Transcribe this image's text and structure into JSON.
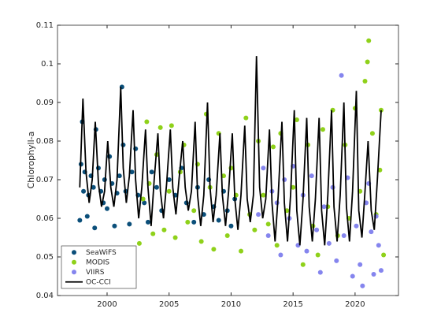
{
  "chart_data": {
    "type": "scatter",
    "ylabel": "Chlorophyll-a",
    "xlim": [
      1996,
      2023.5
    ],
    "xticks": [
      2000,
      2005,
      2010,
      2015,
      2020
    ],
    "ylim": [
      0.04,
      0.11
    ],
    "yticks": [
      0.04,
      0.05,
      0.06,
      0.07,
      0.08,
      0.09,
      0.1,
      0.11
    ],
    "legend": "lower-left",
    "series": [
      {
        "name": "SeaWiFS",
        "color": "#0b4f7a",
        "style": "marker",
        "x": [
          1997.8,
          1997.9,
          1998.0,
          1998.1,
          1998.2,
          1998.4,
          1998.5,
          1998.7,
          1998.9,
          1999.0,
          1999.1,
          1999.3,
          1999.5,
          1999.7,
          1999.8,
          2000.0,
          2000.2,
          2000.4,
          2000.6,
          2000.8,
          2001.0,
          2001.2,
          2001.3,
          2001.5,
          2001.8,
          2002.0,
          2002.3,
          2002.5,
          2003.0,
          2003.3,
          2003.6,
          2004.0,
          2004.4,
          2005.0,
          2005.5,
          2006.0,
          2006.4,
          2007.0,
          2007.3,
          2007.8,
          2008.2,
          2008.6,
          2009.0,
          2009.4,
          2009.7,
          2010.0,
          2010.3
        ],
        "values": [
          0.0595,
          0.074,
          0.085,
          0.067,
          0.072,
          0.0605,
          0.066,
          0.071,
          0.068,
          0.0575,
          0.083,
          0.073,
          0.067,
          0.064,
          0.07,
          0.0625,
          0.076,
          0.069,
          0.058,
          0.0665,
          0.071,
          0.094,
          0.079,
          0.067,
          0.0585,
          0.072,
          0.078,
          0.066,
          0.064,
          0.059,
          0.072,
          0.068,
          0.062,
          0.07,
          0.066,
          0.073,
          0.064,
          0.059,
          0.068,
          0.061,
          0.07,
          0.063,
          0.0595,
          0.067,
          0.062,
          0.058,
          0.065
        ]
      },
      {
        "name": "MODIS",
        "color": "#8fd11a",
        "style": "marker",
        "x": [
          2002.6,
          2002.9,
          2003.2,
          2003.4,
          2003.7,
          2004.0,
          2004.3,
          2004.6,
          2005.0,
          2005.2,
          2005.5,
          2005.9,
          2006.2,
          2006.5,
          2007.0,
          2007.3,
          2007.6,
          2008.0,
          2008.3,
          2008.6,
          2009.0,
          2009.4,
          2009.7,
          2010.0,
          2010.4,
          2010.8,
          2011.2,
          2011.5,
          2011.9,
          2012.2,
          2012.6,
          2013.0,
          2013.4,
          2013.7,
          2014.0,
          2014.5,
          2015.0,
          2015.3,
          2015.8,
          2016.2,
          2016.6,
          2017.0,
          2017.4,
          2017.8,
          2018.2,
          2018.6,
          2019.2,
          2019.5,
          2020.0,
          2020.4,
          2020.8,
          2021.0,
          2021.1,
          2021.4,
          2021.7,
          2022.0,
          2022.1,
          2022.3
        ],
        "values": [
          0.0535,
          0.065,
          0.085,
          0.069,
          0.056,
          0.0765,
          0.0835,
          0.057,
          0.067,
          0.084,
          0.055,
          0.072,
          0.079,
          0.059,
          0.062,
          0.074,
          0.054,
          0.087,
          0.068,
          0.052,
          0.082,
          0.071,
          0.0555,
          0.073,
          0.066,
          0.0515,
          0.086,
          0.061,
          0.057,
          0.08,
          0.066,
          0.0585,
          0.0785,
          0.053,
          0.082,
          0.062,
          0.068,
          0.0855,
          0.048,
          0.079,
          0.058,
          0.0505,
          0.083,
          0.063,
          0.088,
          0.0555,
          0.079,
          0.06,
          0.0885,
          0.067,
          0.0955,
          0.1005,
          0.106,
          0.082,
          0.061,
          0.0725,
          0.088,
          0.0505
        ]
      },
      {
        "name": "VIIRS",
        "color": "#8585ee",
        "style": "marker",
        "x": [
          2012.2,
          2012.6,
          2013.0,
          2013.3,
          2013.7,
          2014.0,
          2014.3,
          2014.7,
          2015.0,
          2015.4,
          2015.8,
          2016.1,
          2016.5,
          2016.9,
          2017.2,
          2017.5,
          2017.9,
          2018.2,
          2018.5,
          2018.9,
          2019.1,
          2019.4,
          2019.8,
          2020.1,
          2020.4,
          2020.6,
          2020.9,
          2021.1,
          2021.3,
          2021.5,
          2021.7,
          2021.9,
          2022.1
        ],
        "values": [
          0.061,
          0.073,
          0.0555,
          0.067,
          0.064,
          0.0505,
          0.07,
          0.06,
          0.0735,
          0.053,
          0.066,
          0.0515,
          0.071,
          0.057,
          0.046,
          0.063,
          0.0535,
          0.068,
          0.049,
          0.097,
          0.0555,
          0.0705,
          0.045,
          0.058,
          0.048,
          0.0425,
          0.064,
          0.069,
          0.0565,
          0.0455,
          0.0605,
          0.053,
          0.0465
        ]
      },
      {
        "name": "OC-CCI",
        "color": "#000000",
        "style": "line",
        "x": [
          1997.8,
          1998.05,
          1998.3,
          1998.55,
          1998.8,
          1999.05,
          1999.3,
          1999.55,
          1999.8,
          2000.05,
          2000.3,
          2000.55,
          2000.8,
          2001.1,
          2001.3,
          2001.55,
          2001.8,
          2002.1,
          2002.3,
          2002.55,
          2002.8,
          2003.1,
          2003.3,
          2003.55,
          2003.8,
          2004.1,
          2004.3,
          2004.55,
          2004.8,
          2005.1,
          2005.3,
          2005.55,
          2005.8,
          2006.1,
          2006.3,
          2006.55,
          2006.8,
          2007.1,
          2007.3,
          2007.55,
          2007.8,
          2008.1,
          2008.3,
          2008.55,
          2008.8,
          2009.1,
          2009.3,
          2009.55,
          2009.8,
          2010.1,
          2010.3,
          2010.55,
          2010.8,
          2011.1,
          2011.3,
          2011.55,
          2011.8,
          2012.05,
          2012.3,
          2012.55,
          2012.8,
          2013.1,
          2013.3,
          2013.55,
          2013.8,
          2014.1,
          2014.3,
          2014.55,
          2014.8,
          2015.1,
          2015.3,
          2015.55,
          2015.8,
          2016.1,
          2016.3,
          2016.55,
          2016.8,
          2017.1,
          2017.3,
          2017.55,
          2017.8,
          2018.1,
          2018.3,
          2018.55,
          2018.8,
          2019.1,
          2019.3,
          2019.55,
          2019.8,
          2020.1,
          2020.3,
          2020.55,
          2020.8,
          2021.05,
          2021.3,
          2021.55,
          2021.8,
          2022.1
        ],
        "values": [
          0.068,
          0.091,
          0.072,
          0.064,
          0.07,
          0.085,
          0.069,
          0.063,
          0.067,
          0.08,
          0.068,
          0.063,
          0.07,
          0.094,
          0.073,
          0.064,
          0.071,
          0.088,
          0.07,
          0.06,
          0.068,
          0.083,
          0.068,
          0.058,
          0.07,
          0.082,
          0.067,
          0.06,
          0.069,
          0.083,
          0.068,
          0.061,
          0.07,
          0.08,
          0.068,
          0.062,
          0.067,
          0.085,
          0.066,
          0.058,
          0.066,
          0.09,
          0.068,
          0.059,
          0.066,
          0.082,
          0.066,
          0.058,
          0.067,
          0.082,
          0.065,
          0.057,
          0.066,
          0.084,
          0.065,
          0.059,
          0.066,
          0.102,
          0.068,
          0.06,
          0.065,
          0.083,
          0.064,
          0.054,
          0.066,
          0.085,
          0.064,
          0.054,
          0.066,
          0.088,
          0.062,
          0.053,
          0.065,
          0.086,
          0.063,
          0.054,
          0.065,
          0.086,
          0.062,
          0.053,
          0.066,
          0.088,
          0.063,
          0.054,
          0.066,
          0.09,
          0.063,
          0.054,
          0.067,
          0.093,
          0.062,
          0.055,
          0.067,
          0.08,
          0.062,
          0.057,
          0.07,
          0.088
        ]
      }
    ]
  }
}
